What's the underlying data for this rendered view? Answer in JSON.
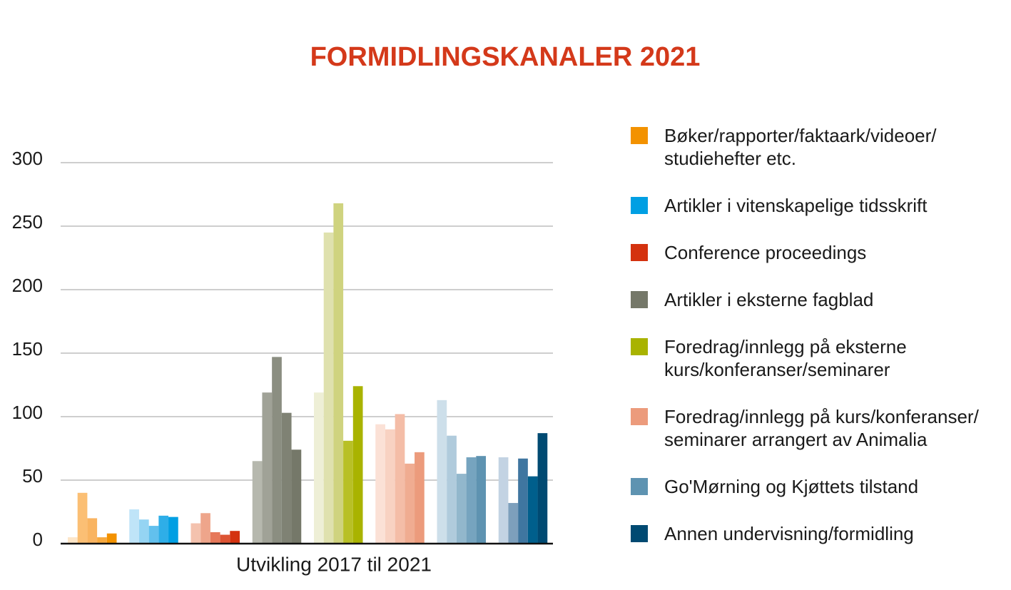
{
  "chart_data": {
    "type": "bar",
    "title": "FORMIDLINGSKANALER 2021",
    "x_label": "Utvikling 2017 til 2021",
    "ylim": [
      0,
      300
    ],
    "yticks": [
      0,
      50,
      100,
      150,
      200,
      250,
      300
    ],
    "grid": true,
    "series": [
      {
        "name": "Bøker/rapporter/faktaark/videoer/\nstudiehefter etc.",
        "color": "#f39200",
        "shades": [
          "#fde6c8",
          "#fbbf74",
          "#f9b461",
          "#f7a93f",
          "#f39200"
        ],
        "values": [
          5,
          40,
          20,
          5,
          8
        ]
      },
      {
        "name": "Artikler i vitenskapelige tidsskrift",
        "color": "#009fe3",
        "shades": [
          "#bfe4f8",
          "#95d4f3",
          "#62c0ed",
          "#2eaee8",
          "#009fe3"
        ],
        "values": [
          27,
          19,
          14,
          22,
          21
        ]
      },
      {
        "name": "Conference proceedings",
        "color": "#d4320f",
        "shades": [
          "#f4c2ae",
          "#eea58b",
          "#e6785a",
          "#dd5433",
          "#d4320f"
        ],
        "values": [
          16,
          24,
          9,
          7,
          10
        ]
      },
      {
        "name": "Artikler i eksterne fagblad",
        "color": "#757869",
        "shades": [
          "#b6b8ae",
          "#a0a297",
          "#8b8e81",
          "#7f8274",
          "#757869"
        ],
        "values": [
          65,
          119,
          147,
          103,
          74
        ]
      },
      {
        "name": "Foredrag/innlegg på eksterne\nkurs/konferanser/seminarer",
        "color": "#a9b300",
        "shades": [
          "#eeefd6",
          "#dfe1ae",
          "#cfd37f",
          "#b8c026",
          "#a9b300"
        ],
        "values": [
          119,
          245,
          268,
          81,
          124
        ]
      },
      {
        "name": "Foredrag/innlegg på kurs/konferanser/\nseminarer arrangert av Animalia",
        "color": "#ec9b7c",
        "shades": [
          "#fbe1d6",
          "#f8d2c2",
          "#f4bda7",
          "#f0ac91",
          "#ec9b7c"
        ],
        "values": [
          94,
          90,
          102,
          63,
          72
        ]
      },
      {
        "name": "Go'Mørning og Kjøttets tilstand",
        "color": "#5e93b1",
        "shades": [
          "#cddfea",
          "#b0cbdc",
          "#92b7cc",
          "#76a4bf",
          "#5e93b1"
        ],
        "values": [
          113,
          85,
          55,
          68,
          69
        ]
      },
      {
        "name": "Annen undervisning/formidling",
        "color": "#004a72",
        "shades": [
          "#c3d3e3",
          "#7d9fbc",
          "#3f76a0",
          "#005f8c",
          "#004a72"
        ],
        "values": [
          68,
          32,
          67,
          53,
          87
        ]
      }
    ]
  }
}
